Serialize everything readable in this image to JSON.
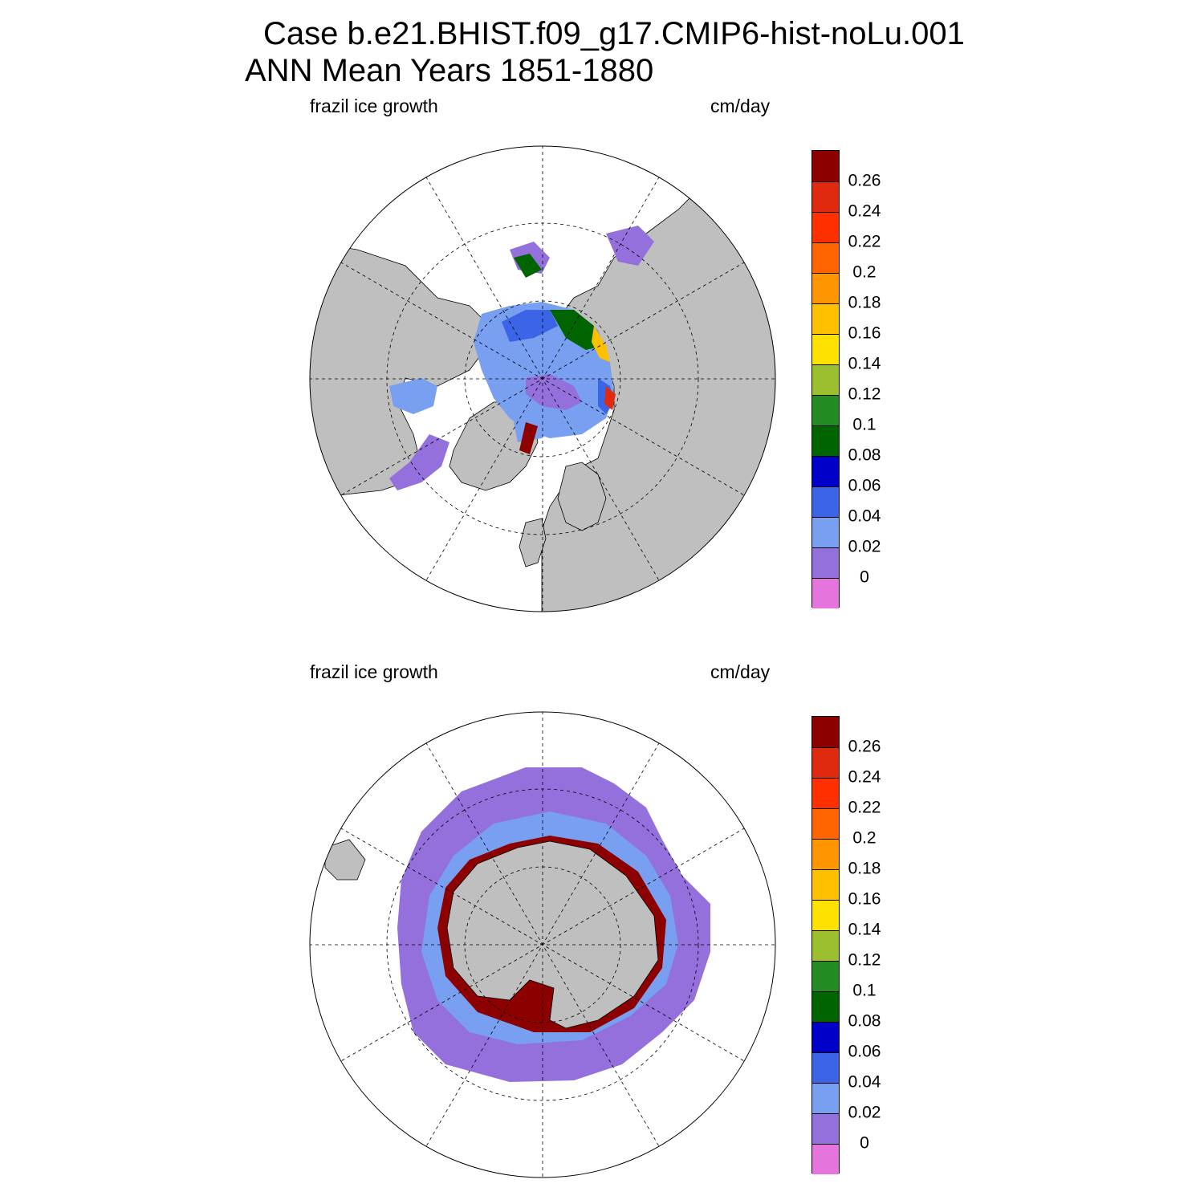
{
  "title": {
    "line1": "Case b.e21.BHIST.f09_g17.CMIP6-hist-noLu.001",
    "line2": "ANN Mean     Years 1851-1880"
  },
  "panels": [
    {
      "id": "north",
      "left_string": "frazil ice growth",
      "right_string": "cm/day",
      "projection": "north-polar-stereographic"
    },
    {
      "id": "south",
      "left_string": "frazil ice growth",
      "right_string": "cm/day",
      "projection": "south-polar-stereographic"
    }
  ],
  "colors": {
    "land": "#bfbfbf",
    "no_data": "#ffffff",
    "grid": "#000000"
  },
  "colorbar": {
    "levels": [
      "0",
      "0.02",
      "0.04",
      "0.06",
      "0.08",
      "0.1",
      "0.12",
      "0.14",
      "0.16",
      "0.18",
      "0.2",
      "0.22",
      "0.24",
      "0.26"
    ],
    "colors": [
      "#e574dc",
      "#9370db",
      "#789ff0",
      "#3c64e6",
      "#0000c8",
      "#006400",
      "#228b22",
      "#9bbf2f",
      "#ffe100",
      "#ffc000",
      "#ff9500",
      "#ff6400",
      "#ff3000",
      "#e02a10",
      "#8c0000"
    ]
  }
}
